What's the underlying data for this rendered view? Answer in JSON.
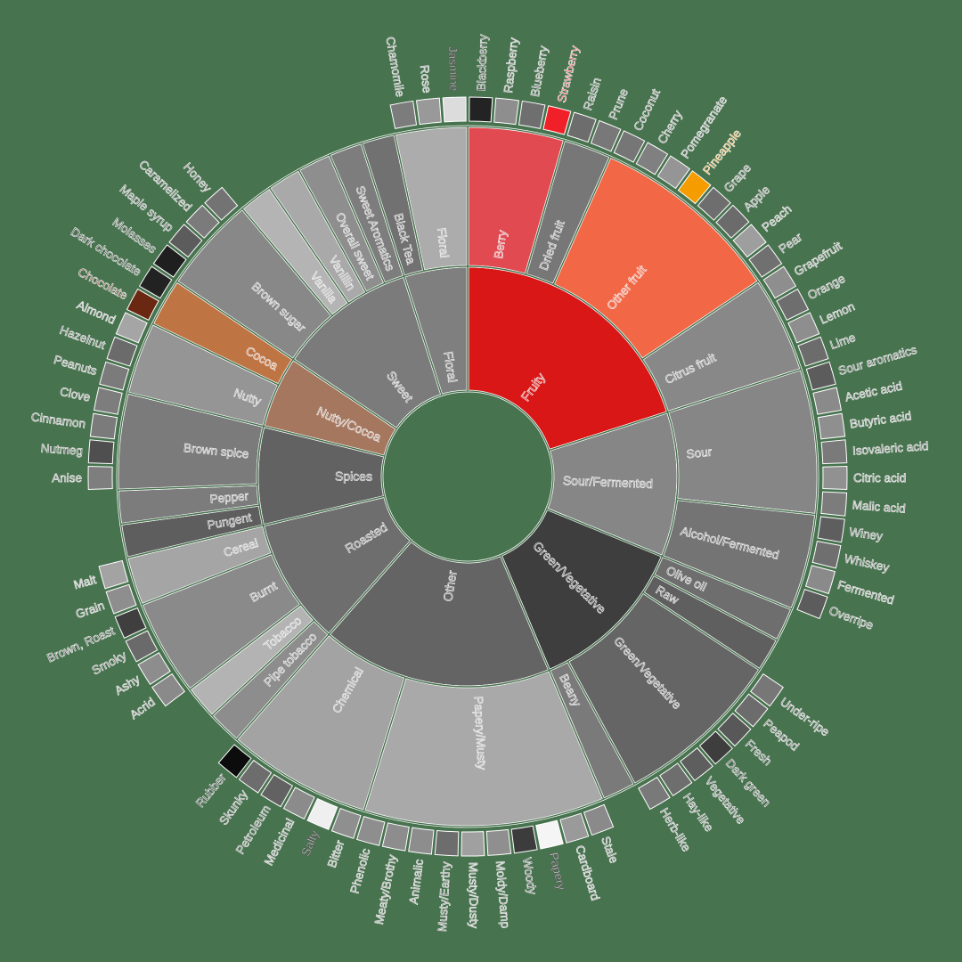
{
  "chart_data": {
    "type": "sunburst",
    "title": "",
    "start_angle_deg": 0,
    "direction": "clockwise",
    "background": "#48734f",
    "levels": [
      "category",
      "subcategory",
      "flavor"
    ],
    "leaf_value_note": "outer flavors value 1, inner-level leaves approx 1.4 (estimated from sector widths)",
    "categories": [
      {
        "label": "Fruity",
        "color": "#d91717",
        "children": [
          {
            "label": "Berry",
            "color": "#e04a50",
            "children": [
              {
                "label": "Blackberry",
                "color": "#232323",
                "value": 1
              },
              {
                "label": "Raspberry",
                "color": "#8e8e8e",
                "value": 1
              },
              {
                "label": "Blueberry",
                "color": "#6f6f6f",
                "value": 1
              },
              {
                "label": "Strawberry",
                "color": "#f01f28",
                "value": 1
              }
            ]
          },
          {
            "label": "Dried fruit",
            "color": "#777777",
            "children": [
              {
                "label": "Raisin",
                "color": "#6d6d6d",
                "value": 1
              },
              {
                "label": "Prune",
                "color": "#787878",
                "value": 1
              }
            ]
          },
          {
            "label": "Other fruit",
            "color": "#f26846",
            "children": [
              {
                "label": "Coconut",
                "color": "#767676",
                "value": 1
              },
              {
                "label": "Cherry",
                "color": "#808080",
                "value": 1
              },
              {
                "label": "Pomegranate",
                "color": "#959595",
                "value": 1
              },
              {
                "label": "Pineapple",
                "color": "#f59c00",
                "value": 1
              },
              {
                "label": "Grape",
                "color": "#6e6e6e",
                "value": 1
              },
              {
                "label": "Apple",
                "color": "#6b6b6b",
                "value": 1
              },
              {
                "label": "Peach",
                "color": "#9e9e9e",
                "value": 1
              },
              {
                "label": "Pear",
                "color": "#707070",
                "value": 1
              }
            ]
          },
          {
            "label": "Citrus fruit",
            "color": "#888888",
            "children": [
              {
                "label": "Grapefruit",
                "color": "#8e8e8e",
                "value": 1
              },
              {
                "label": "Orange",
                "color": "#6e6e6e",
                "value": 1
              },
              {
                "label": "Lemon",
                "color": "#8e8e8e",
                "value": 1
              },
              {
                "label": "Lime",
                "color": "#6c6c6c",
                "value": 1
              }
            ]
          }
        ]
      },
      {
        "label": "Sour/Fermented",
        "color": "#868686",
        "children": [
          {
            "label": "Sour",
            "color": "#868686",
            "children": [
              {
                "label": "Sour aromatics",
                "color": "#5c5c5c",
                "value": 1
              },
              {
                "label": "Acetic acid",
                "color": "#8a8a8a",
                "value": 1
              },
              {
                "label": "Butyric acid",
                "color": "#8f8f8f",
                "value": 1
              },
              {
                "label": "Isovaleric acid",
                "color": "#7a7a7a",
                "value": 1
              },
              {
                "label": "Citric acid",
                "color": "#919191",
                "value": 1
              },
              {
                "label": "Malic acid",
                "color": "#7c7c7c",
                "value": 1
              }
            ]
          },
          {
            "label": "Alcohol/Fermented",
            "color": "#747474",
            "children": [
              {
                "label": "Winey",
                "color": "#5e5e5e",
                "value": 1
              },
              {
                "label": "Whiskey",
                "color": "#6f6f6f",
                "value": 1
              },
              {
                "label": "Fermented",
                "color": "#8a8a8a",
                "value": 1
              },
              {
                "label": "Overripe",
                "color": "#5c5c5c",
                "value": 1
              }
            ]
          }
        ]
      },
      {
        "label": "Green/Vegetative",
        "color": "#3e3e3e",
        "children": [
          {
            "label": "Olive oil",
            "color": "#6e6e6e",
            "value": 1.4
          },
          {
            "label": "Raw",
            "color": "#5f5f5f",
            "value": 1.4
          },
          {
            "label": "Green/Vegetative",
            "color": "#656565",
            "children": [
              {
                "label": "Under-ripe",
                "color": "#777777",
                "value": 1
              },
              {
                "label": "Peapod",
                "color": "#6c6c6c",
                "value": 1
              },
              {
                "label": "Fresh",
                "color": "#585858",
                "value": 1
              },
              {
                "label": "Dark green",
                "color": "#3e3e3e",
                "value": 1
              },
              {
                "label": "Vegetative",
                "color": "#5e5e5e",
                "value": 1
              },
              {
                "label": "Hay-like",
                "color": "#6e6e6e",
                "value": 1
              },
              {
                "label": "Herb-like",
                "color": "#797979",
                "value": 1
              }
            ]
          },
          {
            "label": "Beany",
            "color": "#7a7a7a",
            "value": 1.4
          }
        ]
      },
      {
        "label": "Other",
        "color": "#646464",
        "children": [
          {
            "label": "Papery/Musty",
            "color": "#a9a9a9",
            "children": [
              {
                "label": "Stale",
                "color": "#8a8a8a",
                "value": 1
              },
              {
                "label": "Cardboard",
                "color": "#9a9a9a",
                "value": 1
              },
              {
                "label": "Papery",
                "color": "#f5f5f5",
                "value": 1
              },
              {
                "label": "Woody",
                "color": "#3c3c3c",
                "value": 1
              },
              {
                "label": "Moldy/Damp",
                "color": "#8f8f8f",
                "value": 1
              },
              {
                "label": "Musty/Dusty",
                "color": "#a0a0a0",
                "value": 1
              },
              {
                "label": "Musty/Earthy",
                "color": "#6d6d6d",
                "value": 1
              },
              {
                "label": "Animalic",
                "color": "#8d8d8d",
                "value": 1
              },
              {
                "label": "Meaty/Brothy",
                "color": "#8d8d8d",
                "value": 1
              },
              {
                "label": "Phenolic",
                "color": "#8e8e8e",
                "value": 1
              }
            ]
          },
          {
            "label": "Chemical",
            "color": "#a3a3a3",
            "children": [
              {
                "label": "Bitter",
                "color": "#8f8f8f",
                "value": 1
              },
              {
                "label": "Salty",
                "color": "#efefef",
                "value": 1
              },
              {
                "label": "Medicinal",
                "color": "#8b8b8b",
                "value": 1
              },
              {
                "label": "Petroleum",
                "color": "#626262",
                "value": 1
              },
              {
                "label": "Skunky",
                "color": "#6d6d6d",
                "value": 1
              },
              {
                "label": "Rubber",
                "color": "#0c0c0c",
                "value": 1
              }
            ]
          }
        ]
      },
      {
        "label": "Roasted",
        "color": "#6e6e6e",
        "children": [
          {
            "label": "Pipe tobacco",
            "color": "#8d8d8d",
            "value": 1.4
          },
          {
            "label": "Tobacco",
            "color": "#b3b3b3",
            "value": 1.4
          },
          {
            "label": "Burnt",
            "color": "#8a8a8a",
            "children": [
              {
                "label": "Acrid",
                "color": "#8a8a8a",
                "value": 1
              },
              {
                "label": "Ashy",
                "color": "#8d8d8d",
                "value": 1
              },
              {
                "label": "Smoky",
                "color": "#6a6a6a",
                "value": 1
              },
              {
                "label": "Brown, Roast",
                "color": "#3f3f3f",
                "value": 1
              }
            ]
          },
          {
            "label": "Cereal",
            "color": "#a5a5a5",
            "children": [
              {
                "label": "Grain",
                "color": "#8e8e8e",
                "value": 1
              },
              {
                "label": "Malt",
                "color": "#a3a3a3",
                "value": 1
              }
            ]
          }
        ]
      },
      {
        "label": "Spices",
        "color": "#626262",
        "children": [
          {
            "label": "Pungent",
            "color": "#5e5e5e",
            "value": 1.4
          },
          {
            "label": "Pepper",
            "color": "#7c7c7c",
            "value": 1.4
          },
          {
            "label": "Brown spice",
            "color": "#7b7b7b",
            "children": [
              {
                "label": "Anise",
                "color": "#7e7e7e",
                "value": 1
              },
              {
                "label": "Nutmeg",
                "color": "#4f4f4f",
                "value": 1
              },
              {
                "label": "Cinnamon",
                "color": "#7b7b7b",
                "value": 1
              },
              {
                "label": "Clove",
                "color": "#7d7d7d",
                "value": 1
              }
            ]
          }
        ]
      },
      {
        "label": "Nutty/Cocoa",
        "color": "#a5775f",
        "children": [
          {
            "label": "Nutty",
            "color": "#959595",
            "children": [
              {
                "label": "Peanuts",
                "color": "#7b7b7b",
                "value": 1
              },
              {
                "label": "Hazelnut",
                "color": "#6b6b6b",
                "value": 1
              },
              {
                "label": "Almond",
                "color": "#a5a5a5",
                "value": 1
              }
            ]
          },
          {
            "label": "Cocoa",
            "color": "#bf7444",
            "children": [
              {
                "label": "Chocolate",
                "color": "#6a2812",
                "value": 1
              },
              {
                "label": "Dark chocolate",
                "color": "#222222",
                "value": 1
              }
            ]
          }
        ]
      },
      {
        "label": "Sweet",
        "color": "#7b7b7b",
        "children": [
          {
            "label": "Brown sugar",
            "color": "#888888",
            "children": [
              {
                "label": "Molasses",
                "color": "#1f1f1f",
                "value": 1
              },
              {
                "label": "Maple syrup",
                "color": "#5c5c5c",
                "value": 1
              },
              {
                "label": "Caramelized",
                "color": "#7b7b7b",
                "value": 1
              },
              {
                "label": "Honey",
                "color": "#737373",
                "value": 1
              }
            ]
          },
          {
            "label": "Vanilla",
            "color": "#b4b4b4",
            "value": 1.4
          },
          {
            "label": "Vanillin",
            "color": "#a9a9a9",
            "value": 1.4
          },
          {
            "label": "Overall sweet",
            "color": "#8e8e8e",
            "value": 1.4
          },
          {
            "label": "Sweet Aromatics",
            "color": "#7d7d7d",
            "value": 1.4
          }
        ]
      },
      {
        "label": "Floral",
        "color": "#7f7f7f",
        "children": [
          {
            "label": "Black Tea",
            "color": "#717171",
            "value": 1.4
          },
          {
            "label": "Floral",
            "color": "#acacac",
            "children": [
              {
                "label": "Chamomile",
                "color": "#7c7c7c",
                "value": 1
              },
              {
                "label": "Rose",
                "color": "#999999",
                "value": 1
              },
              {
                "label": "Jasmine",
                "color": "#dcdcdc",
                "value": 1
              }
            ]
          }
        ]
      }
    ]
  }
}
